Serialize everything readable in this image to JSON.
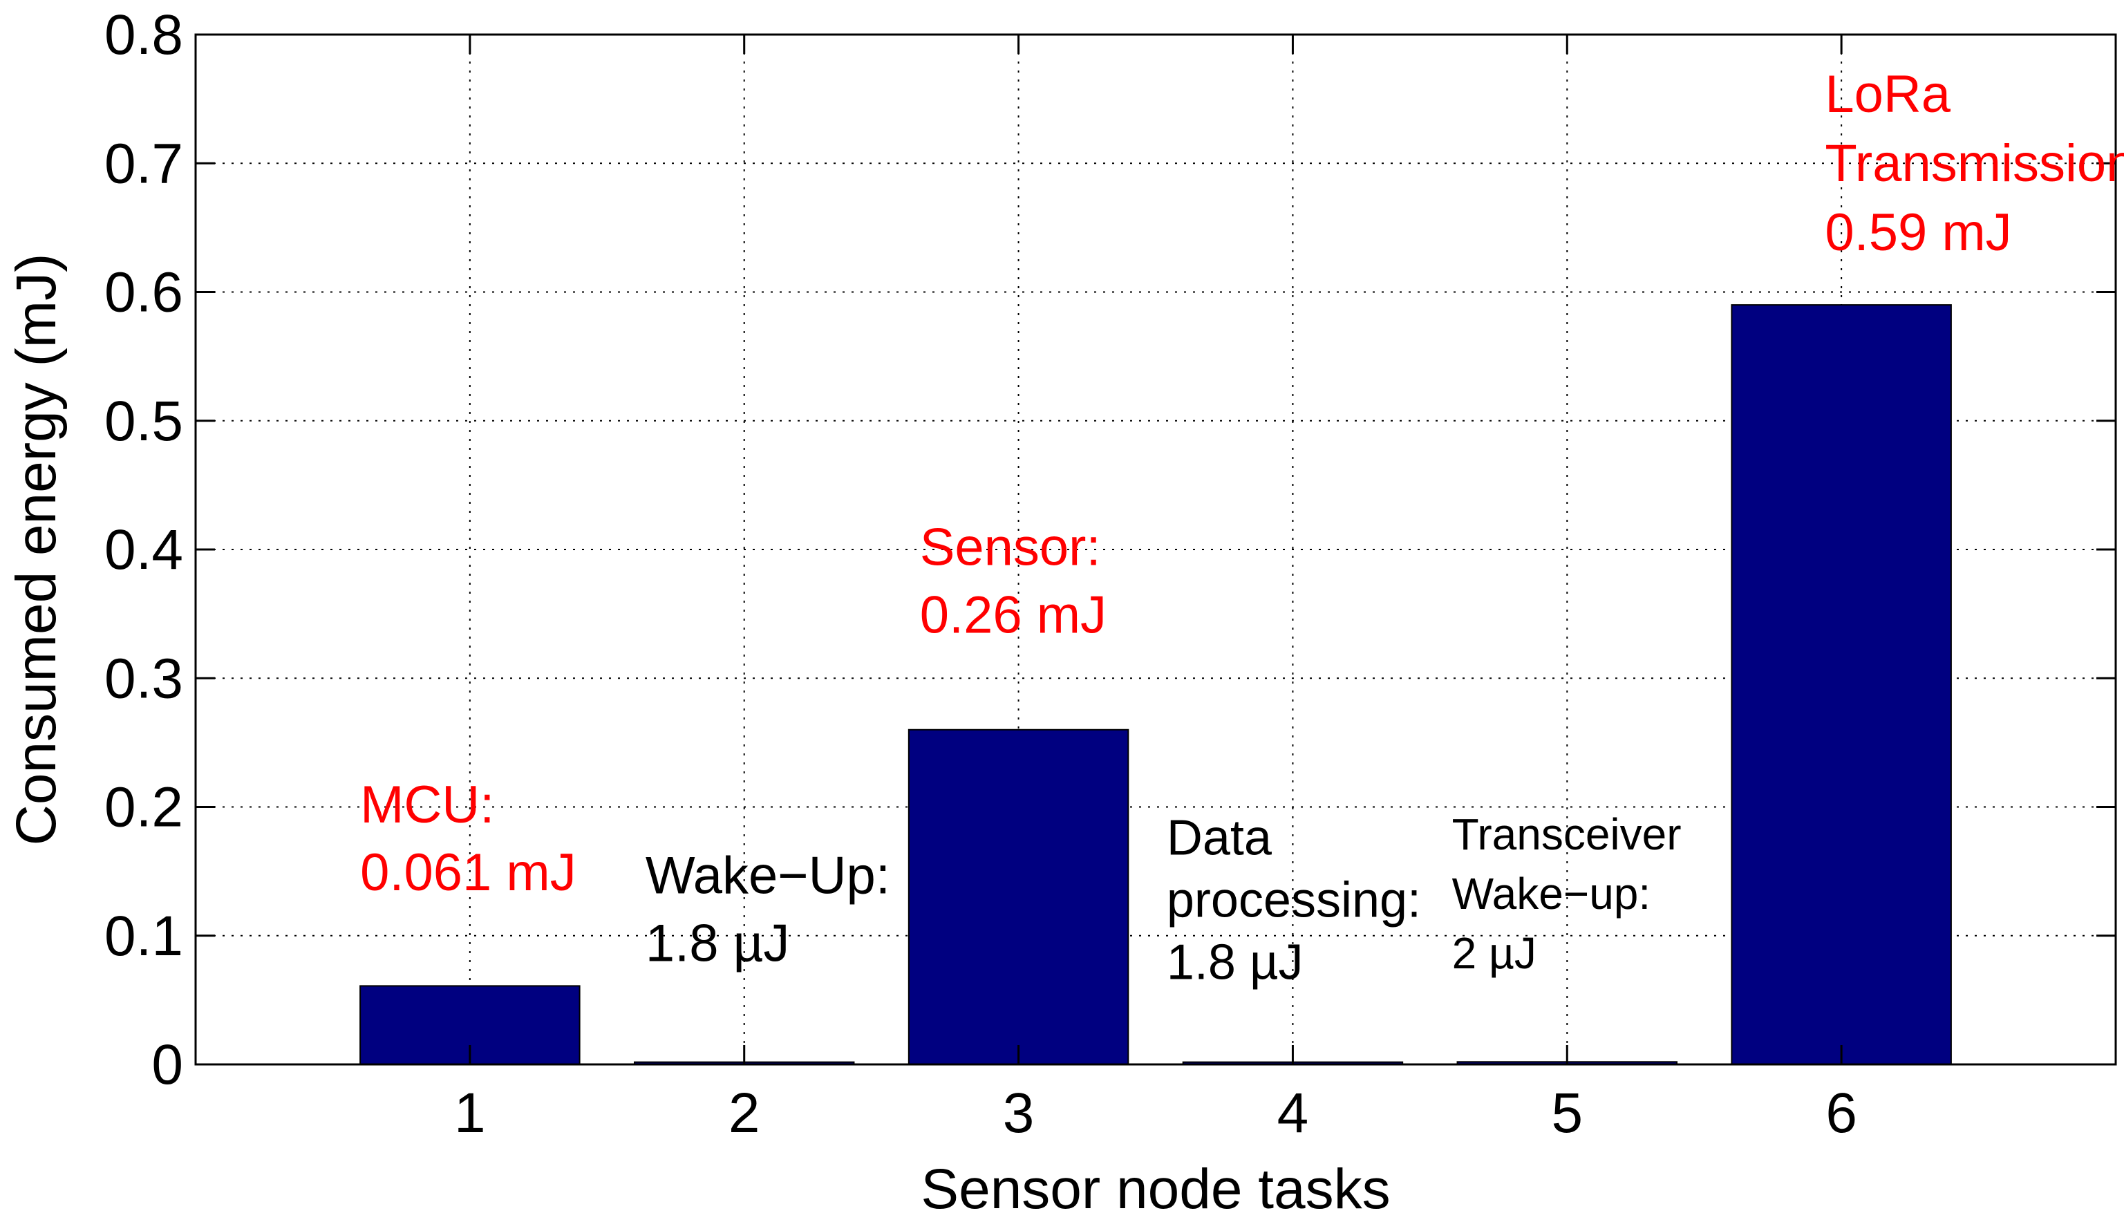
{
  "chart_data": {
    "type": "bar",
    "categories": [
      "1",
      "2",
      "3",
      "4",
      "5",
      "6"
    ],
    "values": [
      0.061,
      0.0018,
      0.26,
      0.0018,
      0.002,
      0.59
    ],
    "xlabel": "Sensor node tasks",
    "ylabel": "Consumed energy (mJ)",
    "ylim": [
      0,
      0.8
    ],
    "yticks": [
      "0",
      "0.1",
      "0.2",
      "0.3",
      "0.4",
      "0.5",
      "0.6",
      "0.7",
      "0.8"
    ],
    "grid": true,
    "bar_color": "#000080",
    "annotations": [
      {
        "category": "1",
        "lines": [
          "MCU:",
          "0.061 mJ"
        ],
        "color": "#ff0000"
      },
      {
        "category": "2",
        "lines": [
          "Wake−Up:",
          "1.8 µJ"
        ],
        "color": "#000000"
      },
      {
        "category": "3",
        "lines": [
          "Sensor:",
          "0.26 mJ"
        ],
        "color": "#ff0000"
      },
      {
        "category": "4",
        "lines": [
          "Data",
          "processing:",
          "1.8 µJ"
        ],
        "color": "#000000"
      },
      {
        "category": "5",
        "lines": [
          "Transceiver",
          "Wake−up:",
          "2 µJ"
        ],
        "color": "#000000"
      },
      {
        "category": "6",
        "lines": [
          "LoRa",
          "Transmission:",
          "0.59 mJ"
        ],
        "color": "#ff0000"
      }
    ]
  }
}
